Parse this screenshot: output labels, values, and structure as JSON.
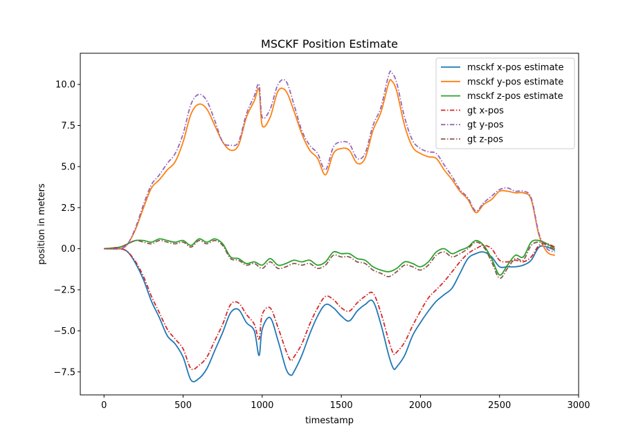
{
  "chart_data": {
    "type": "line",
    "title": "MSCKF Position Estimate",
    "xlabel": "timestamp",
    "ylabel": "position in meters",
    "xlim": [
      -150,
      3000
    ],
    "ylim": [
      -8.9,
      11.9
    ],
    "xticks": [
      0,
      500,
      1000,
      1500,
      2000,
      2500,
      3000
    ],
    "xtick_labels": [
      "0",
      "500",
      "1000",
      "1500",
      "2000",
      "2500",
      "3000"
    ],
    "yticks": [
      -7.5,
      -5.0,
      -2.5,
      0.0,
      2.5,
      5.0,
      7.5,
      10.0
    ],
    "ytick_labels": [
      "−7.5",
      "−5.0",
      "−2.5",
      "0.0",
      "2.5",
      "5.0",
      "7.5",
      "10.0"
    ],
    "grid": false,
    "legend_position": "top-right",
    "series": [
      {
        "name": "msckf x-pos estimate",
        "color": "#1f77b4",
        "dash": "solid",
        "x": [
          0,
          100,
          150,
          200,
          250,
          300,
          350,
          400,
          450,
          500,
          550,
          600,
          650,
          700,
          750,
          800,
          850,
          900,
          950,
          980,
          1000,
          1050,
          1100,
          1150,
          1180,
          1200,
          1250,
          1300,
          1350,
          1400,
          1450,
          1500,
          1550,
          1600,
          1650,
          1700,
          1750,
          1800,
          1830,
          1850,
          1900,
          1950,
          2000,
          2050,
          2100,
          2150,
          2200,
          2250,
          2300,
          2350,
          2400,
          2450,
          2500,
          2550,
          2600,
          2650,
          2700,
          2750,
          2800,
          2850
        ],
        "y": [
          0,
          0,
          -0.2,
          -0.9,
          -1.9,
          -3.2,
          -4.2,
          -5.3,
          -5.8,
          -6.6,
          -8.0,
          -7.9,
          -7.3,
          -6.2,
          -5.1,
          -3.9,
          -3.7,
          -4.5,
          -5.0,
          -6.5,
          -4.9,
          -4.2,
          -5.6,
          -7.3,
          -7.7,
          -7.5,
          -6.5,
          -5.2,
          -4.1,
          -3.4,
          -3.6,
          -4.1,
          -4.4,
          -3.8,
          -3.4,
          -3.2,
          -4.6,
          -6.5,
          -7.3,
          -7.2,
          -6.5,
          -5.3,
          -4.5,
          -3.8,
          -3.2,
          -2.8,
          -2.4,
          -1.5,
          -0.6,
          -0.3,
          -0.2,
          -0.5,
          -1.1,
          -1.1,
          -1.1,
          -1.0,
          -0.7,
          0.1,
          0.1,
          -0.1
        ]
      },
      {
        "name": "msckf y-pos estimate",
        "color": "#ff7f0e",
        "dash": "solid",
        "x": [
          0,
          100,
          150,
          200,
          250,
          300,
          350,
          400,
          450,
          500,
          550,
          600,
          650,
          700,
          750,
          800,
          850,
          900,
          950,
          980,
          1000,
          1050,
          1100,
          1150,
          1200,
          1250,
          1300,
          1350,
          1400,
          1450,
          1500,
          1550,
          1600,
          1650,
          1700,
          1750,
          1800,
          1820,
          1850,
          1900,
          1950,
          2000,
          2050,
          2100,
          2150,
          2200,
          2250,
          2300,
          2350,
          2400,
          2450,
          2500,
          2550,
          2600,
          2650,
          2700,
          2750,
          2800,
          2850
        ],
        "y": [
          0,
          0,
          0.3,
          1.2,
          2.5,
          3.7,
          4.2,
          4.8,
          5.3,
          6.5,
          8.2,
          8.8,
          8.5,
          7.5,
          6.5,
          6.0,
          6.3,
          8.0,
          9.0,
          9.7,
          7.5,
          8.0,
          9.6,
          9.6,
          8.4,
          7.0,
          6.0,
          5.5,
          4.5,
          5.8,
          6.1,
          6.0,
          5.2,
          5.5,
          7.2,
          8.3,
          10.1,
          10.2,
          9.6,
          7.5,
          6.2,
          5.8,
          5.6,
          5.5,
          4.8,
          4.2,
          3.5,
          3.0,
          2.2,
          2.7,
          3.0,
          3.5,
          3.5,
          3.4,
          3.4,
          3.0,
          0.8,
          -0.2,
          -0.4
        ]
      },
      {
        "name": "msckf z-pos estimate",
        "color": "#2ca02c",
        "dash": "solid",
        "x": [
          0,
          100,
          150,
          200,
          250,
          300,
          350,
          400,
          450,
          500,
          550,
          600,
          650,
          700,
          750,
          800,
          850,
          900,
          950,
          1000,
          1050,
          1100,
          1150,
          1200,
          1250,
          1300,
          1350,
          1400,
          1450,
          1500,
          1550,
          1600,
          1650,
          1700,
          1750,
          1800,
          1850,
          1900,
          1950,
          2000,
          2050,
          2100,
          2150,
          2200,
          2250,
          2300,
          2350,
          2400,
          2450,
          2500,
          2550,
          2600,
          2650,
          2700,
          2750,
          2800,
          2850
        ],
        "y": [
          0,
          0.1,
          0.3,
          0.5,
          0.5,
          0.4,
          0.6,
          0.5,
          0.4,
          0.5,
          0.2,
          0.6,
          0.4,
          0.6,
          0.3,
          -0.5,
          -0.6,
          -0.9,
          -0.8,
          -1.0,
          -0.6,
          -1.0,
          -0.9,
          -0.7,
          -0.8,
          -0.7,
          -1.0,
          -0.8,
          -0.2,
          -0.3,
          -0.3,
          -0.6,
          -0.7,
          -1.1,
          -1.3,
          -1.4,
          -1.2,
          -0.8,
          -0.9,
          -1.1,
          -0.8,
          -0.2,
          0,
          -0.3,
          -0.1,
          0.1,
          0.5,
          0.2,
          -0.6,
          -1.6,
          -1.0,
          -0.4,
          -0.5,
          0.4,
          0.5,
          0.3,
          0
        ]
      },
      {
        "name": "gt x-pos",
        "color": "#d62728",
        "dash": "dashdot",
        "x": [
          0,
          100,
          150,
          200,
          250,
          300,
          350,
          400,
          450,
          500,
          550,
          600,
          650,
          700,
          750,
          800,
          850,
          900,
          950,
          980,
          1000,
          1050,
          1100,
          1150,
          1180,
          1200,
          1250,
          1300,
          1350,
          1400,
          1450,
          1500,
          1550,
          1600,
          1650,
          1700,
          1750,
          1800,
          1830,
          1850,
          1900,
          1950,
          2000,
          2050,
          2100,
          2150,
          2200,
          2250,
          2300,
          2350,
          2400,
          2450,
          2500,
          2550,
          2600,
          2650,
          2700,
          2750,
          2800,
          2850
        ],
        "y": [
          0,
          0,
          -0.2,
          -0.8,
          -1.7,
          -2.9,
          -3.9,
          -4.9,
          -5.5,
          -6.1,
          -7.3,
          -7.1,
          -6.6,
          -5.6,
          -4.6,
          -3.4,
          -3.3,
          -4.0,
          -4.6,
          -5.5,
          -4.0,
          -3.6,
          -4.8,
          -6.2,
          -6.8,
          -6.6,
          -5.8,
          -4.6,
          -3.6,
          -2.9,
          -3.1,
          -3.6,
          -3.8,
          -3.3,
          -2.9,
          -2.7,
          -3.9,
          -5.6,
          -6.4,
          -6.3,
          -5.7,
          -4.7,
          -3.8,
          -3.0,
          -2.5,
          -2.0,
          -1.4,
          -0.8,
          -0.3,
          0,
          0.2,
          0,
          -0.7,
          -0.8,
          -0.7,
          -0.8,
          -0.5,
          0.2,
          0.3,
          0.1
        ]
      },
      {
        "name": "gt y-pos",
        "color": "#9467bd",
        "dash": "dashdot",
        "x": [
          0,
          100,
          150,
          200,
          250,
          300,
          350,
          400,
          450,
          500,
          550,
          600,
          650,
          700,
          750,
          800,
          850,
          900,
          950,
          980,
          1000,
          1050,
          1100,
          1150,
          1200,
          1250,
          1300,
          1350,
          1400,
          1450,
          1500,
          1550,
          1600,
          1650,
          1700,
          1750,
          1800,
          1820,
          1850,
          1900,
          1950,
          2000,
          2050,
          2100,
          2150,
          2200,
          2250,
          2300,
          2350,
          2400,
          2450,
          2500,
          2550,
          2600,
          2650,
          2700,
          2750,
          2800,
          2850
        ],
        "y": [
          0,
          0,
          0.3,
          1.3,
          2.7,
          3.9,
          4.5,
          5.2,
          5.8,
          7.0,
          8.8,
          9.4,
          9.0,
          7.8,
          6.5,
          6.3,
          6.5,
          8.2,
          9.3,
          10.0,
          8.0,
          8.5,
          10.0,
          10.2,
          8.8,
          7.2,
          6.3,
          5.8,
          4.8,
          6.2,
          6.5,
          6.4,
          5.5,
          5.8,
          7.5,
          8.6,
          10.6,
          10.7,
          10.1,
          8.0,
          6.6,
          6.1,
          5.9,
          5.8,
          5.1,
          4.4,
          3.6,
          3.1,
          2.3,
          2.8,
          3.2,
          3.6,
          3.7,
          3.5,
          3.5,
          3.1,
          0.9,
          0,
          -0.2
        ]
      },
      {
        "name": "gt z-pos",
        "color": "#8c564b",
        "dash": "dashdot",
        "x": [
          0,
          100,
          150,
          200,
          250,
          300,
          350,
          400,
          450,
          500,
          550,
          600,
          650,
          700,
          750,
          800,
          850,
          900,
          950,
          1000,
          1050,
          1100,
          1150,
          1200,
          1250,
          1300,
          1350,
          1400,
          1450,
          1500,
          1550,
          1600,
          1650,
          1700,
          1750,
          1800,
          1850,
          1900,
          1950,
          2000,
          2050,
          2100,
          2150,
          2200,
          2250,
          2300,
          2350,
          2400,
          2450,
          2500,
          2550,
          2600,
          2650,
          2700,
          2750,
          2800,
          2850
        ],
        "y": [
          0,
          0.1,
          0.3,
          0.5,
          0.4,
          0.3,
          0.5,
          0.4,
          0.3,
          0.4,
          0.1,
          0.5,
          0.3,
          0.5,
          0.2,
          -0.6,
          -0.7,
          -1.0,
          -0.9,
          -1.2,
          -0.8,
          -1.2,
          -1.1,
          -0.9,
          -1.0,
          -0.9,
          -1.2,
          -1.0,
          -0.4,
          -0.5,
          -0.5,
          -0.8,
          -0.9,
          -1.3,
          -1.5,
          -1.7,
          -1.4,
          -1.0,
          -1.1,
          -1.3,
          -1.0,
          -0.4,
          -0.2,
          -0.5,
          -0.3,
          0,
          0.4,
          0.1,
          -0.8,
          -1.8,
          -1.2,
          -0.6,
          -0.7,
          0.2,
          0.4,
          0.2,
          -0.1
        ]
      }
    ]
  }
}
